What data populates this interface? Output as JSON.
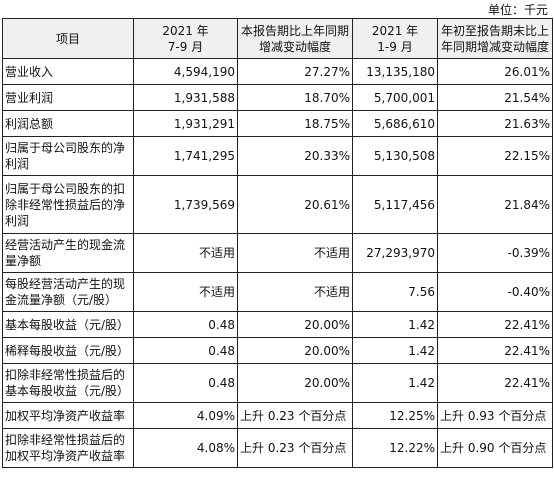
{
  "unit": "单位：千元",
  "headers": {
    "item": "项目",
    "q3_line1": "2021 年",
    "q3_line2": "7-9 月",
    "q3_change": "本报告期比上年同期增减变动幅度",
    "ytd_line1": "2021 年",
    "ytd_line2": "1-9 月",
    "ytd_change": "年初至报告期末比上年同期增减变动幅度"
  },
  "rows": [
    {
      "label": "营业收入",
      "q3": "4,594,190",
      "q3_chg": "27.27%",
      "ytd": "13,135,180",
      "ytd_chg": "26.01%"
    },
    {
      "label": "营业利润",
      "q3": "1,931,588",
      "q3_chg": "18.70%",
      "ytd": "5,700,001",
      "ytd_chg": "21.54%"
    },
    {
      "label": "利润总额",
      "q3": "1,931,291",
      "q3_chg": "18.75%",
      "ytd": "5,686,610",
      "ytd_chg": "21.63%"
    },
    {
      "label": "归属于母公司股东的净利润",
      "q3": "1,741,295",
      "q3_chg": "20.33%",
      "ytd": "5,130,508",
      "ytd_chg": "22.15%"
    },
    {
      "label": "归属于母公司股东的扣除非经常性损益后的净利润",
      "q3": "1,739,569",
      "q3_chg": "20.61%",
      "ytd": "5,117,456",
      "ytd_chg": "21.84%"
    },
    {
      "label": "经营活动产生的现金流量净额",
      "q3": "不适用",
      "q3_chg": "不适用",
      "ytd": "27,293,970",
      "ytd_chg": "-0.39%"
    },
    {
      "label": "每股经营活动产生的现金流量净额（元/股）",
      "q3": "不适用",
      "q3_chg": "不适用",
      "ytd": "7.56",
      "ytd_chg": "-0.40%"
    },
    {
      "label": "基本每股收益（元/股）",
      "q3": "0.48",
      "q3_chg": "20.00%",
      "ytd": "1.42",
      "ytd_chg": "22.41%"
    },
    {
      "label": "稀释每股收益（元/股）",
      "q3": "0.48",
      "q3_chg": "20.00%",
      "ytd": "1.42",
      "ytd_chg": "22.41%"
    },
    {
      "label": "扣除非经常性损益后的基本每股收益（元/股）",
      "q3": "0.48",
      "q3_chg": "20.00%",
      "ytd": "1.42",
      "ytd_chg": "22.41%"
    },
    {
      "label": "加权平均净资产收益率",
      "q3": "4.09%",
      "q3_chg": "上升 0.23 个百分点",
      "ytd": "12.25%",
      "ytd_chg": "上升 0.93 个百分点"
    },
    {
      "label": "扣除非经常性损益后的加权平均净资产收益率",
      "q3": "4.08%",
      "q3_chg": "上升 0.23 个百分点",
      "ytd": "12.22%",
      "ytd_chg": "上升 0.90 个百分点"
    }
  ]
}
